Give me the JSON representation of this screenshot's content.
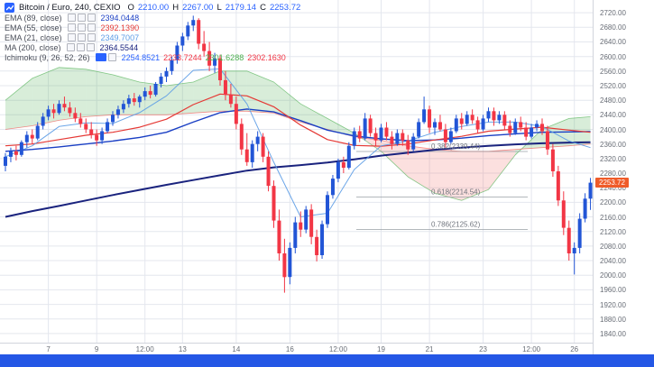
{
  "header": {
    "symbol": "Bitcoin / Euro, 240, CEXIO",
    "ohlc": {
      "o_label": "O",
      "o_value": "2210.00",
      "h_label": "H",
      "h_value": "2267.00",
      "l_label": "L",
      "l_value": "2179.14",
      "c_label": "C",
      "c_value": "2253.72"
    },
    "indicators": [
      {
        "label": "EMA (89, close)",
        "value": "2394.0448",
        "color": "#1a3fc4"
      },
      {
        "label": "EMA (55, close)",
        "value": "2392.1390",
        "color": "#e53935"
      },
      {
        "label": "EMA (21, close)",
        "value": "2349.7007",
        "color": "#5c9ce6"
      },
      {
        "label": "MA (200, close)",
        "value": "2364.5544",
        "color": "#1a237e"
      },
      {
        "label": "Ichimoku (9, 26, 52, 26)",
        "values": [
          "2254.8521",
          "2233.7244",
          "2301.6288",
          "2302.1630"
        ],
        "value_colors": [
          "#2962ff",
          "#f23645",
          "#4caf50",
          "#f23645"
        ]
      }
    ]
  },
  "chart_data": {
    "type": "candlestick",
    "title": "Bitcoin / Euro, 240, CEXIO",
    "price_axis": {
      "min": 1815,
      "max": 2755,
      "tick_step": 40,
      "ticks": [
        "2720.00",
        "2680.00",
        "2640.00",
        "2600.00",
        "2560.00",
        "2520.00",
        "2480.00",
        "2440.00",
        "2400.00",
        "2360.00",
        "2320.00",
        "2280.00",
        "2240.00",
        "2200.00",
        "2160.00",
        "2120.00",
        "2080.00",
        "2040.00",
        "2000.00",
        "1960.00",
        "1920.00",
        "1880.00",
        "1840.00"
      ]
    },
    "time_axis": [
      {
        "label": "7",
        "i": 8
      },
      {
        "label": "9",
        "i": 17
      },
      {
        "label": "12:00",
        "i": 26
      },
      {
        "label": "13",
        "i": 33
      },
      {
        "label": "14",
        "i": 43
      },
      {
        "label": "16",
        "i": 53
      },
      {
        "label": "12:00",
        "i": 62
      },
      {
        "label": "19",
        "i": 70
      },
      {
        "label": "21",
        "i": 79
      },
      {
        "label": "23",
        "i": 89
      },
      {
        "label": "12:00",
        "i": 98
      },
      {
        "label": "26",
        "i": 106
      }
    ],
    "candles": [
      [
        2300,
        2335,
        2285,
        2325
      ],
      [
        2325,
        2350,
        2310,
        2340
      ],
      [
        2340,
        2355,
        2315,
        2330
      ],
      [
        2330,
        2370,
        2325,
        2365
      ],
      [
        2365,
        2395,
        2350,
        2385
      ],
      [
        2385,
        2400,
        2360,
        2375
      ],
      [
        2375,
        2420,
        2370,
        2410
      ],
      [
        2410,
        2445,
        2400,
        2435
      ],
      [
        2435,
        2465,
        2425,
        2455
      ],
      [
        2455,
        2470,
        2430,
        2445
      ],
      [
        2445,
        2480,
        2440,
        2470
      ],
      [
        2470,
        2490,
        2450,
        2460
      ],
      [
        2460,
        2475,
        2435,
        2445
      ],
      [
        2445,
        2460,
        2420,
        2430
      ],
      [
        2430,
        2445,
        2405,
        2415
      ],
      [
        2415,
        2430,
        2390,
        2400
      ],
      [
        2400,
        2420,
        2375,
        2385
      ],
      [
        2385,
        2400,
        2355,
        2370
      ],
      [
        2370,
        2405,
        2360,
        2395
      ],
      [
        2395,
        2430,
        2390,
        2420
      ],
      [
        2420,
        2450,
        2410,
        2440
      ],
      [
        2440,
        2465,
        2430,
        2455
      ],
      [
        2455,
        2480,
        2445,
        2470
      ],
      [
        2470,
        2495,
        2460,
        2485
      ],
      [
        2485,
        2500,
        2465,
        2475
      ],
      [
        2475,
        2495,
        2460,
        2490
      ],
      [
        2490,
        2515,
        2480,
        2505
      ],
      [
        2505,
        2520,
        2485,
        2495
      ],
      [
        2495,
        2530,
        2490,
        2525
      ],
      [
        2525,
        2555,
        2515,
        2545
      ],
      [
        2545,
        2570,
        2530,
        2560
      ],
      [
        2560,
        2600,
        2550,
        2590
      ],
      [
        2590,
        2640,
        2580,
        2630
      ],
      [
        2630,
        2665,
        2615,
        2655
      ],
      [
        2655,
        2695,
        2645,
        2685
      ],
      [
        2685,
        2712,
        2670,
        2700
      ],
      [
        2700,
        2705,
        2620,
        2635
      ],
      [
        2635,
        2670,
        2600,
        2615
      ],
      [
        2615,
        2640,
        2560,
        2575
      ],
      [
        2575,
        2610,
        2555,
        2595
      ],
      [
        2595,
        2605,
        2520,
        2535
      ],
      [
        2535,
        2560,
        2480,
        2495
      ],
      [
        2495,
        2525,
        2460,
        2470
      ],
      [
        2470,
        2490,
        2400,
        2415
      ],
      [
        2415,
        2430,
        2330,
        2345
      ],
      [
        2345,
        2390,
        2300,
        2310
      ],
      [
        2310,
        2370,
        2295,
        2360
      ],
      [
        2360,
        2395,
        2340,
        2380
      ],
      [
        2380,
        2390,
        2310,
        2325
      ],
      [
        2325,
        2340,
        2230,
        2245
      ],
      [
        2245,
        2260,
        2130,
        2150
      ],
      [
        2150,
        2180,
        2040,
        2060
      ],
      [
        2060,
        2100,
        1952,
        1995
      ],
      [
        1995,
        2090,
        1975,
        2075
      ],
      [
        2075,
        2160,
        2060,
        2145
      ],
      [
        2145,
        2175,
        2105,
        2125
      ],
      [
        2125,
        2190,
        2115,
        2180
      ],
      [
        2180,
        2195,
        2085,
        2105
      ],
      [
        2105,
        2125,
        2038,
        2055
      ],
      [
        2055,
        2150,
        2045,
        2140
      ],
      [
        2140,
        2230,
        2130,
        2220
      ],
      [
        2220,
        2275,
        2210,
        2265
      ],
      [
        2265,
        2320,
        2255,
        2310
      ],
      [
        2310,
        2325,
        2280,
        2295
      ],
      [
        2295,
        2365,
        2290,
        2355
      ],
      [
        2355,
        2405,
        2345,
        2395
      ],
      [
        2395,
        2410,
        2365,
        2375
      ],
      [
        2375,
        2445,
        2370,
        2430
      ],
      [
        2430,
        2440,
        2380,
        2390
      ],
      [
        2390,
        2405,
        2355,
        2370
      ],
      [
        2370,
        2415,
        2365,
        2405
      ],
      [
        2405,
        2420,
        2370,
        2380
      ],
      [
        2380,
        2395,
        2345,
        2360
      ],
      [
        2360,
        2400,
        2355,
        2390
      ],
      [
        2390,
        2400,
        2355,
        2370
      ],
      [
        2370,
        2385,
        2330,
        2345
      ],
      [
        2345,
        2390,
        2340,
        2380
      ],
      [
        2380,
        2430,
        2375,
        2420
      ],
      [
        2420,
        2490,
        2415,
        2455
      ],
      [
        2455,
        2465,
        2390,
        2405
      ],
      [
        2405,
        2430,
        2385,
        2420
      ],
      [
        2420,
        2440,
        2395,
        2400
      ],
      [
        2400,
        2415,
        2350,
        2365
      ],
      [
        2365,
        2405,
        2360,
        2395
      ],
      [
        2395,
        2440,
        2390,
        2430
      ],
      [
        2430,
        2445,
        2400,
        2415
      ],
      [
        2415,
        2450,
        2410,
        2440
      ],
      [
        2440,
        2455,
        2415,
        2425
      ],
      [
        2425,
        2435,
        2390,
        2400
      ],
      [
        2400,
        2440,
        2395,
        2430
      ],
      [
        2430,
        2460,
        2420,
        2450
      ],
      [
        2450,
        2460,
        2410,
        2425
      ],
      [
        2425,
        2450,
        2415,
        2440
      ],
      [
        2440,
        2450,
        2400,
        2410
      ],
      [
        2410,
        2425,
        2380,
        2390
      ],
      [
        2390,
        2430,
        2385,
        2420
      ],
      [
        2420,
        2435,
        2395,
        2405
      ],
      [
        2405,
        2420,
        2370,
        2380
      ],
      [
        2380,
        2415,
        2375,
        2405
      ],
      [
        2405,
        2425,
        2395,
        2415
      ],
      [
        2415,
        2430,
        2385,
        2395
      ],
      [
        2395,
        2410,
        2330,
        2345
      ],
      [
        2345,
        2360,
        2270,
        2285
      ],
      [
        2285,
        2300,
        2190,
        2205
      ],
      [
        2205,
        2230,
        2110,
        2130
      ],
      [
        2130,
        2150,
        2040,
        2060
      ],
      [
        2060,
        2090,
        2002,
        2075
      ],
      [
        2075,
        2170,
        2060,
        2155
      ],
      [
        2155,
        2225,
        2145,
        2210
      ],
      [
        2210,
        2267,
        2179.14,
        2253.72
      ]
    ],
    "overlays": {
      "sample_step": 5,
      "ema89": [
        2340,
        2345,
        2352,
        2360,
        2368,
        2378,
        2392,
        2420,
        2446,
        2456,
        2448,
        2424,
        2398,
        2382,
        2374,
        2369,
        2371,
        2376,
        2383,
        2388,
        2392,
        2393,
        2394
      ],
      "ema55": [
        2355,
        2360,
        2372,
        2384,
        2392,
        2406,
        2428,
        2468,
        2497,
        2492,
        2462,
        2412,
        2372,
        2356,
        2354,
        2360,
        2371,
        2381,
        2395,
        2401,
        2406,
        2398,
        2392
      ],
      "ema21": [
        2325,
        2355,
        2408,
        2418,
        2416,
        2446,
        2492,
        2562,
        2566,
        2470,
        2310,
        2160,
        2170,
        2290,
        2355,
        2368,
        2392,
        2408,
        2420,
        2420,
        2408,
        2368,
        2350
      ],
      "ma200": [
        2160,
        2176,
        2190,
        2205,
        2220,
        2234,
        2248,
        2261,
        2274,
        2287,
        2296,
        2302,
        2309,
        2318,
        2328,
        2336,
        2344,
        2350,
        2355,
        2359,
        2362,
        2364,
        2365
      ],
      "senkou_a": [
        2480,
        2540,
        2570,
        2565,
        2550,
        2530,
        2520,
        2530,
        2560,
        2560,
        2530,
        2470,
        2430,
        2390,
        2340,
        2270,
        2225,
        2205,
        2235,
        2330,
        2400,
        2430,
        2435
      ],
      "senkou_b": [
        2400,
        2410,
        2425,
        2435,
        2440,
        2440,
        2440,
        2445,
        2450,
        2450,
        2445,
        2420,
        2400,
        2380,
        2370,
        2355,
        2345,
        2340,
        2340,
        2345,
        2350,
        2355,
        2360
      ]
    },
    "fib_levels": [
      {
        "label": "0.382(2339.44)",
        "price": 2339.44
      },
      {
        "label": "0.618(2214.54)",
        "price": 2214.54
      },
      {
        "label": "0.786(2125.62)",
        "price": 2125.62
      }
    ],
    "last_price": {
      "value": "2253.72",
      "price": 2253.72,
      "color": "#ef5b29"
    },
    "colors": {
      "up": "#2255d6",
      "down": "#f23645",
      "grid": "#e4e7ee",
      "ema89": "#1a3fc4",
      "ema55": "#e53935",
      "ema21": "#5c9ce6",
      "ma200": "#1a237e",
      "cloud_up": "#4caf50",
      "cloud_down": "#ef5350",
      "fib_line": "#9aa0a6",
      "fib_text": "#70757e"
    }
  },
  "chrome": {
    "bottom_bar_color": "#2457e5"
  }
}
